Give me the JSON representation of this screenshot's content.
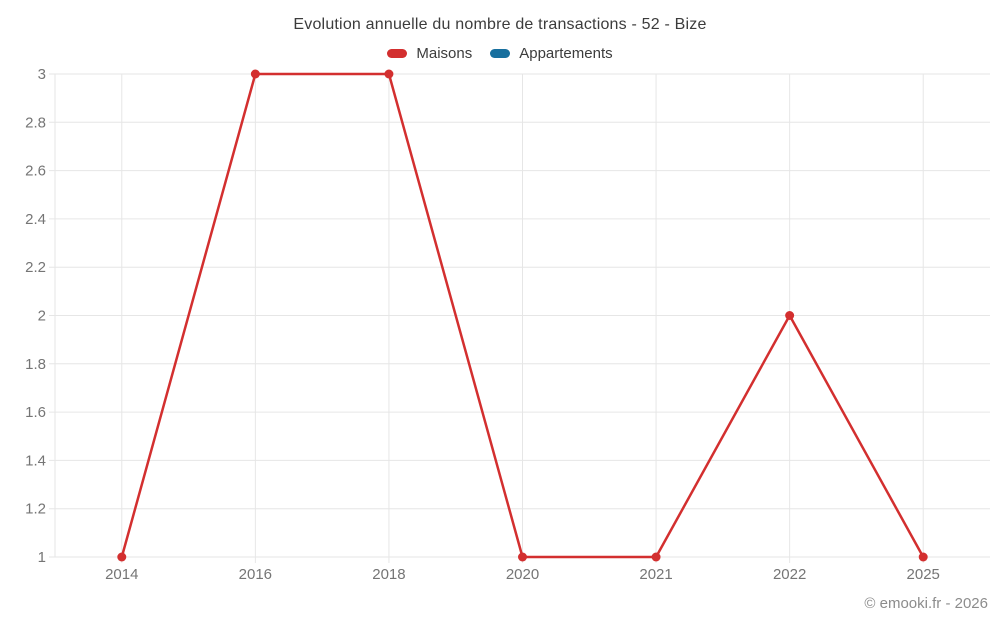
{
  "title": "Evolution annuelle du nombre de transactions - 52 - Bize",
  "legend": [
    {
      "label": "Maisons",
      "color": "#d32f2f"
    },
    {
      "label": "Appartements",
      "color": "#176f9e"
    }
  ],
  "footer": "© emooki.fr - 2026",
  "colors": {
    "grid": "#e6e6e6",
    "axis_label": "#757575",
    "title": "#3c3c3c",
    "footer": "#8c8c8c"
  },
  "chart_data": {
    "type": "line",
    "title": "Evolution annuelle du nombre de transactions - 52 - Bize",
    "categories": [
      "2014",
      "2016",
      "2018",
      "2020",
      "2021",
      "2022",
      "2025"
    ],
    "series": [
      {
        "name": "Maisons",
        "color": "#d32f2f",
        "values": [
          1,
          3,
          3,
          1,
          1,
          2,
          1
        ]
      },
      {
        "name": "Appartements",
        "color": "#176f9e",
        "values": []
      }
    ],
    "ytick_labels": [
      "1",
      "1.2",
      "1.4",
      "1.6",
      "1.8",
      "2",
      "2.2",
      "2.4",
      "2.6",
      "2.8",
      "3"
    ],
    "ylim": [
      1,
      3
    ],
    "xlabel": "",
    "ylabel": "",
    "grid": true,
    "legend_position": "top"
  }
}
